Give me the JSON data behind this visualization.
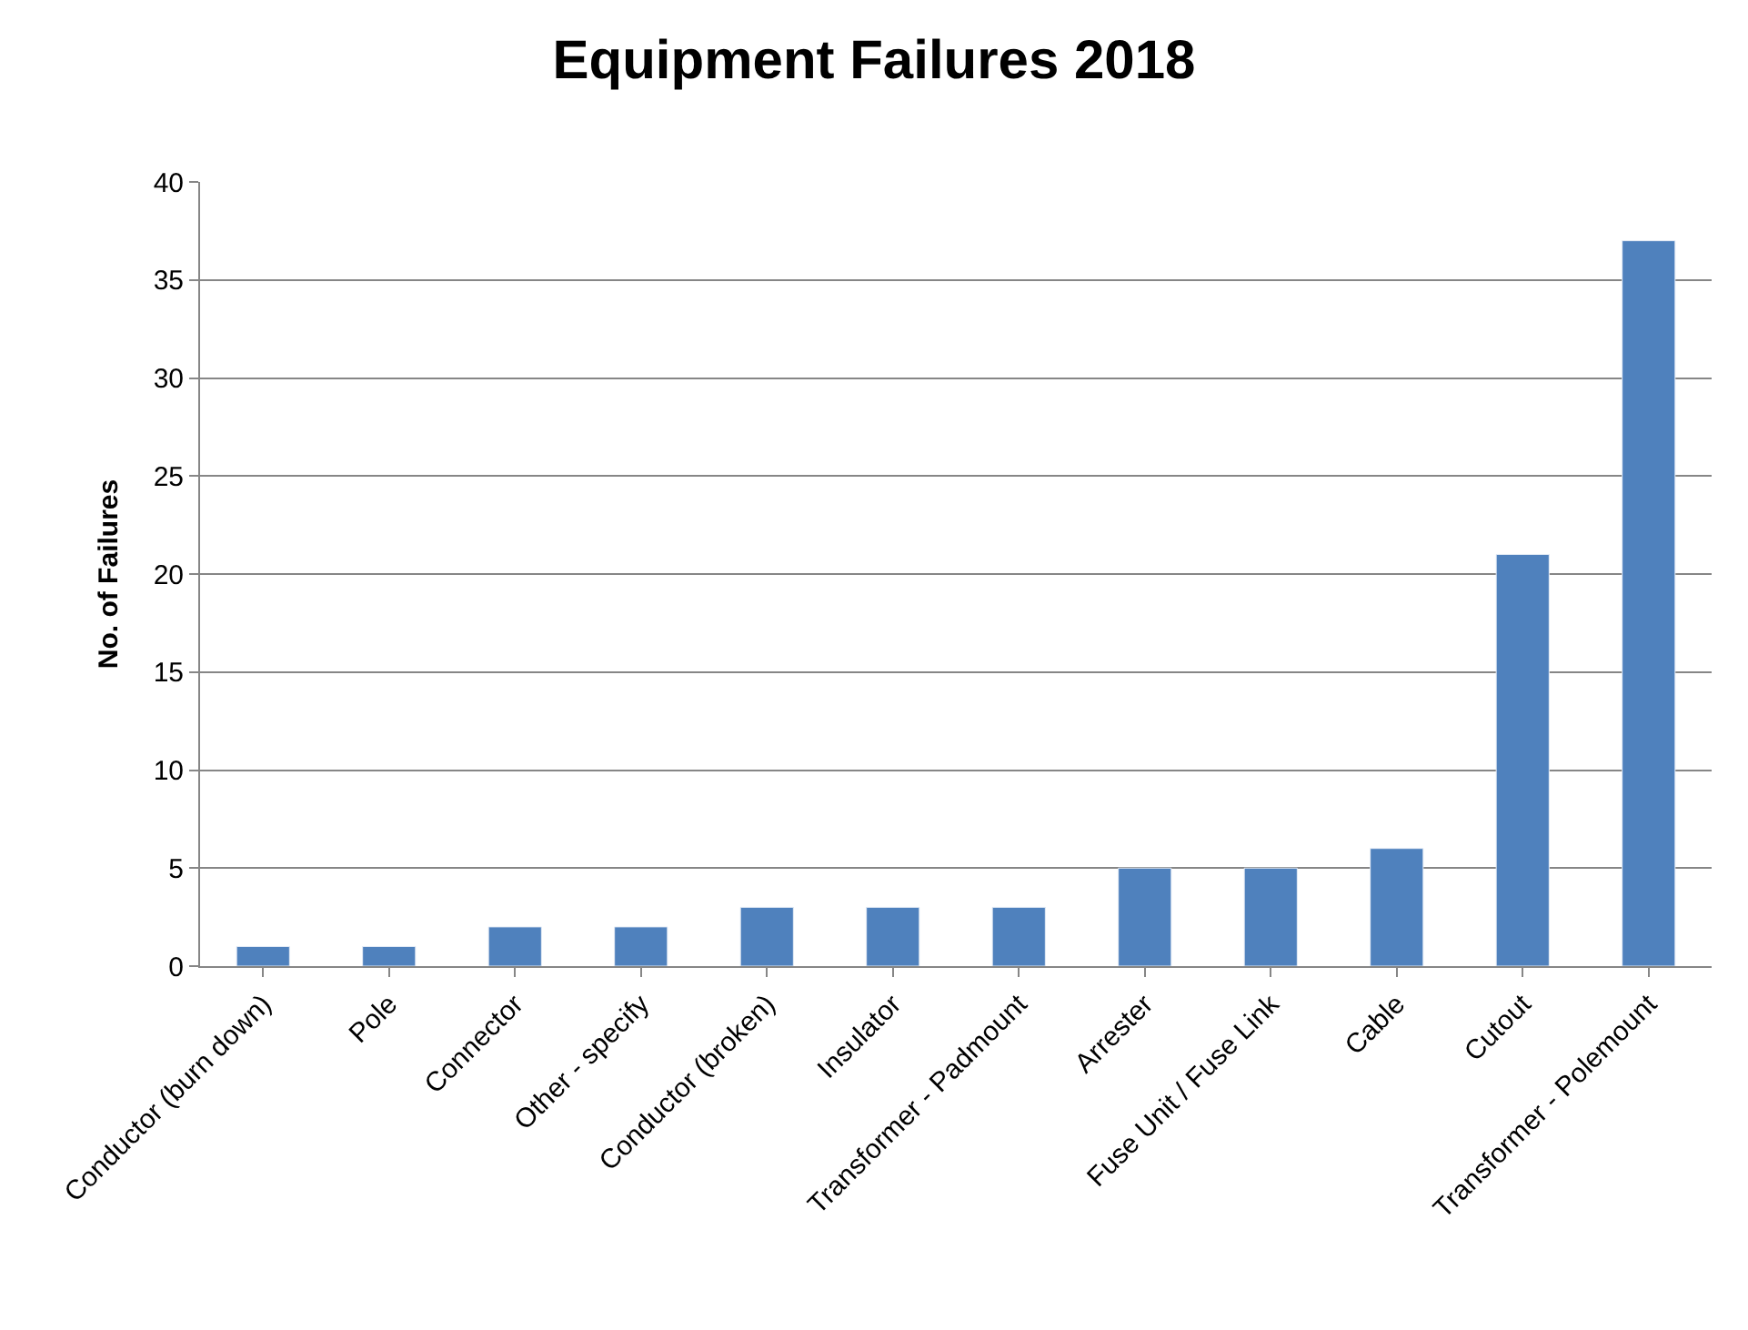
{
  "chart_data": {
    "type": "bar",
    "title": "Equipment Failures 2018",
    "ylabel": "No. of Failures",
    "categories": [
      "Conductor (burn down)",
      "Pole",
      "Connector",
      "Other - specify",
      "Conductor (broken)",
      "Insulator",
      "Transformer - Padmount",
      "Arrester",
      "Fuse Unit / Fuse Link",
      "Cable",
      "Cutout",
      "Transformer - Polemount"
    ],
    "values": [
      1,
      1,
      2,
      2,
      3,
      3,
      3,
      5,
      5,
      6,
      21,
      37
    ],
    "color": "#4f81bd",
    "ylim": [
      0,
      40
    ],
    "yticks": [
      0,
      5,
      10,
      15,
      20,
      25,
      30,
      35,
      40
    ],
    "grid": "y"
  }
}
